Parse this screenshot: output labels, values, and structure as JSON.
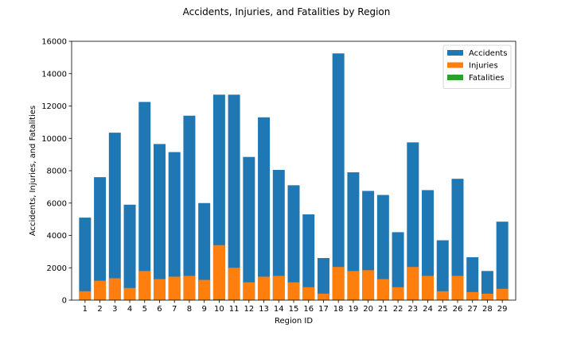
{
  "chart_data": {
    "type": "bar",
    "stacked": false,
    "title": "Accidents, Injuries, and Fatalities by Region",
    "xlabel": "Region ID",
    "ylabel": "Accidents, Injuries, and Fatalities",
    "ylim": [
      0,
      16000
    ],
    "yticks": [
      0,
      2000,
      4000,
      6000,
      8000,
      10000,
      12000,
      14000,
      16000
    ],
    "grid": false,
    "legend_position": "top-right",
    "categories": [
      "1",
      "2",
      "3",
      "4",
      "5",
      "6",
      "7",
      "8",
      "9",
      "10",
      "11",
      "12",
      "13",
      "14",
      "15",
      "16",
      "17",
      "18",
      "19",
      "20",
      "21",
      "22",
      "23",
      "24",
      "25",
      "26",
      "27",
      "28",
      "29"
    ],
    "series": [
      {
        "name": "Accidents",
        "color": "#1f77b4",
        "values": [
          5100,
          7600,
          10350,
          5900,
          12250,
          9650,
          9150,
          11400,
          6000,
          12700,
          12700,
          8850,
          11300,
          8050,
          7100,
          5300,
          2600,
          15250,
          7900,
          6750,
          6500,
          4200,
          9750,
          6800,
          3700,
          7500,
          2650,
          1800,
          4850
        ]
      },
      {
        "name": "Injuries",
        "color": "#ff7f0e",
        "values": [
          550,
          1200,
          1350,
          750,
          1800,
          1300,
          1450,
          1500,
          1250,
          3400,
          2000,
          1100,
          1450,
          1500,
          1100,
          800,
          400,
          2050,
          1800,
          1850,
          1300,
          800,
          2050,
          1500,
          550,
          1500,
          500,
          400,
          700
        ]
      },
      {
        "name": "Fatalities",
        "color": "#2ca02c",
        "values": [
          10,
          20,
          20,
          10,
          30,
          20,
          20,
          20,
          20,
          60,
          30,
          20,
          20,
          20,
          20,
          10,
          10,
          30,
          30,
          30,
          20,
          10,
          30,
          20,
          10,
          20,
          10,
          10,
          10
        ]
      }
    ]
  }
}
